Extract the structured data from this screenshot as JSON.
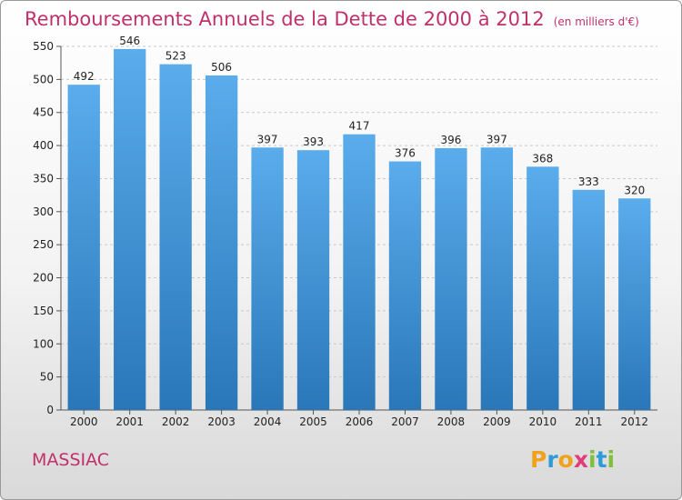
{
  "title": "Remboursements Annuels de la Dette de 2000 à 2012",
  "unit": "(en milliers d'€)",
  "town": "MASSIAC",
  "logo": {
    "letters": [
      "P",
      "r",
      "o",
      "x",
      "i",
      "t",
      "i"
    ],
    "colors": [
      "#f0a21a",
      "#2e9bd6",
      "#f0a21a",
      "#e23b7a",
      "#7fbf3c",
      "#2e9bd6",
      "#7fbf3c"
    ]
  },
  "colors": {
    "title": "#c0306a",
    "bar_top": "#5aaceb",
    "bar_bottom": "#2a77b8"
  },
  "chart_data": {
    "type": "bar",
    "title": "Remboursements Annuels de la Dette de 2000 à 2012",
    "xlabel": "",
    "ylabel": "",
    "categories": [
      "2000",
      "2001",
      "2002",
      "2003",
      "2004",
      "2005",
      "2006",
      "2007",
      "2008",
      "2009",
      "2010",
      "2011",
      "2012"
    ],
    "values": [
      492,
      546,
      523,
      506,
      397,
      393,
      417,
      376,
      396,
      397,
      368,
      333,
      320
    ],
    "ylim": [
      0,
      550
    ],
    "yticks": [
      0,
      50,
      100,
      150,
      200,
      250,
      300,
      350,
      400,
      450,
      500,
      550
    ],
    "grid": true,
    "legend": "none"
  }
}
